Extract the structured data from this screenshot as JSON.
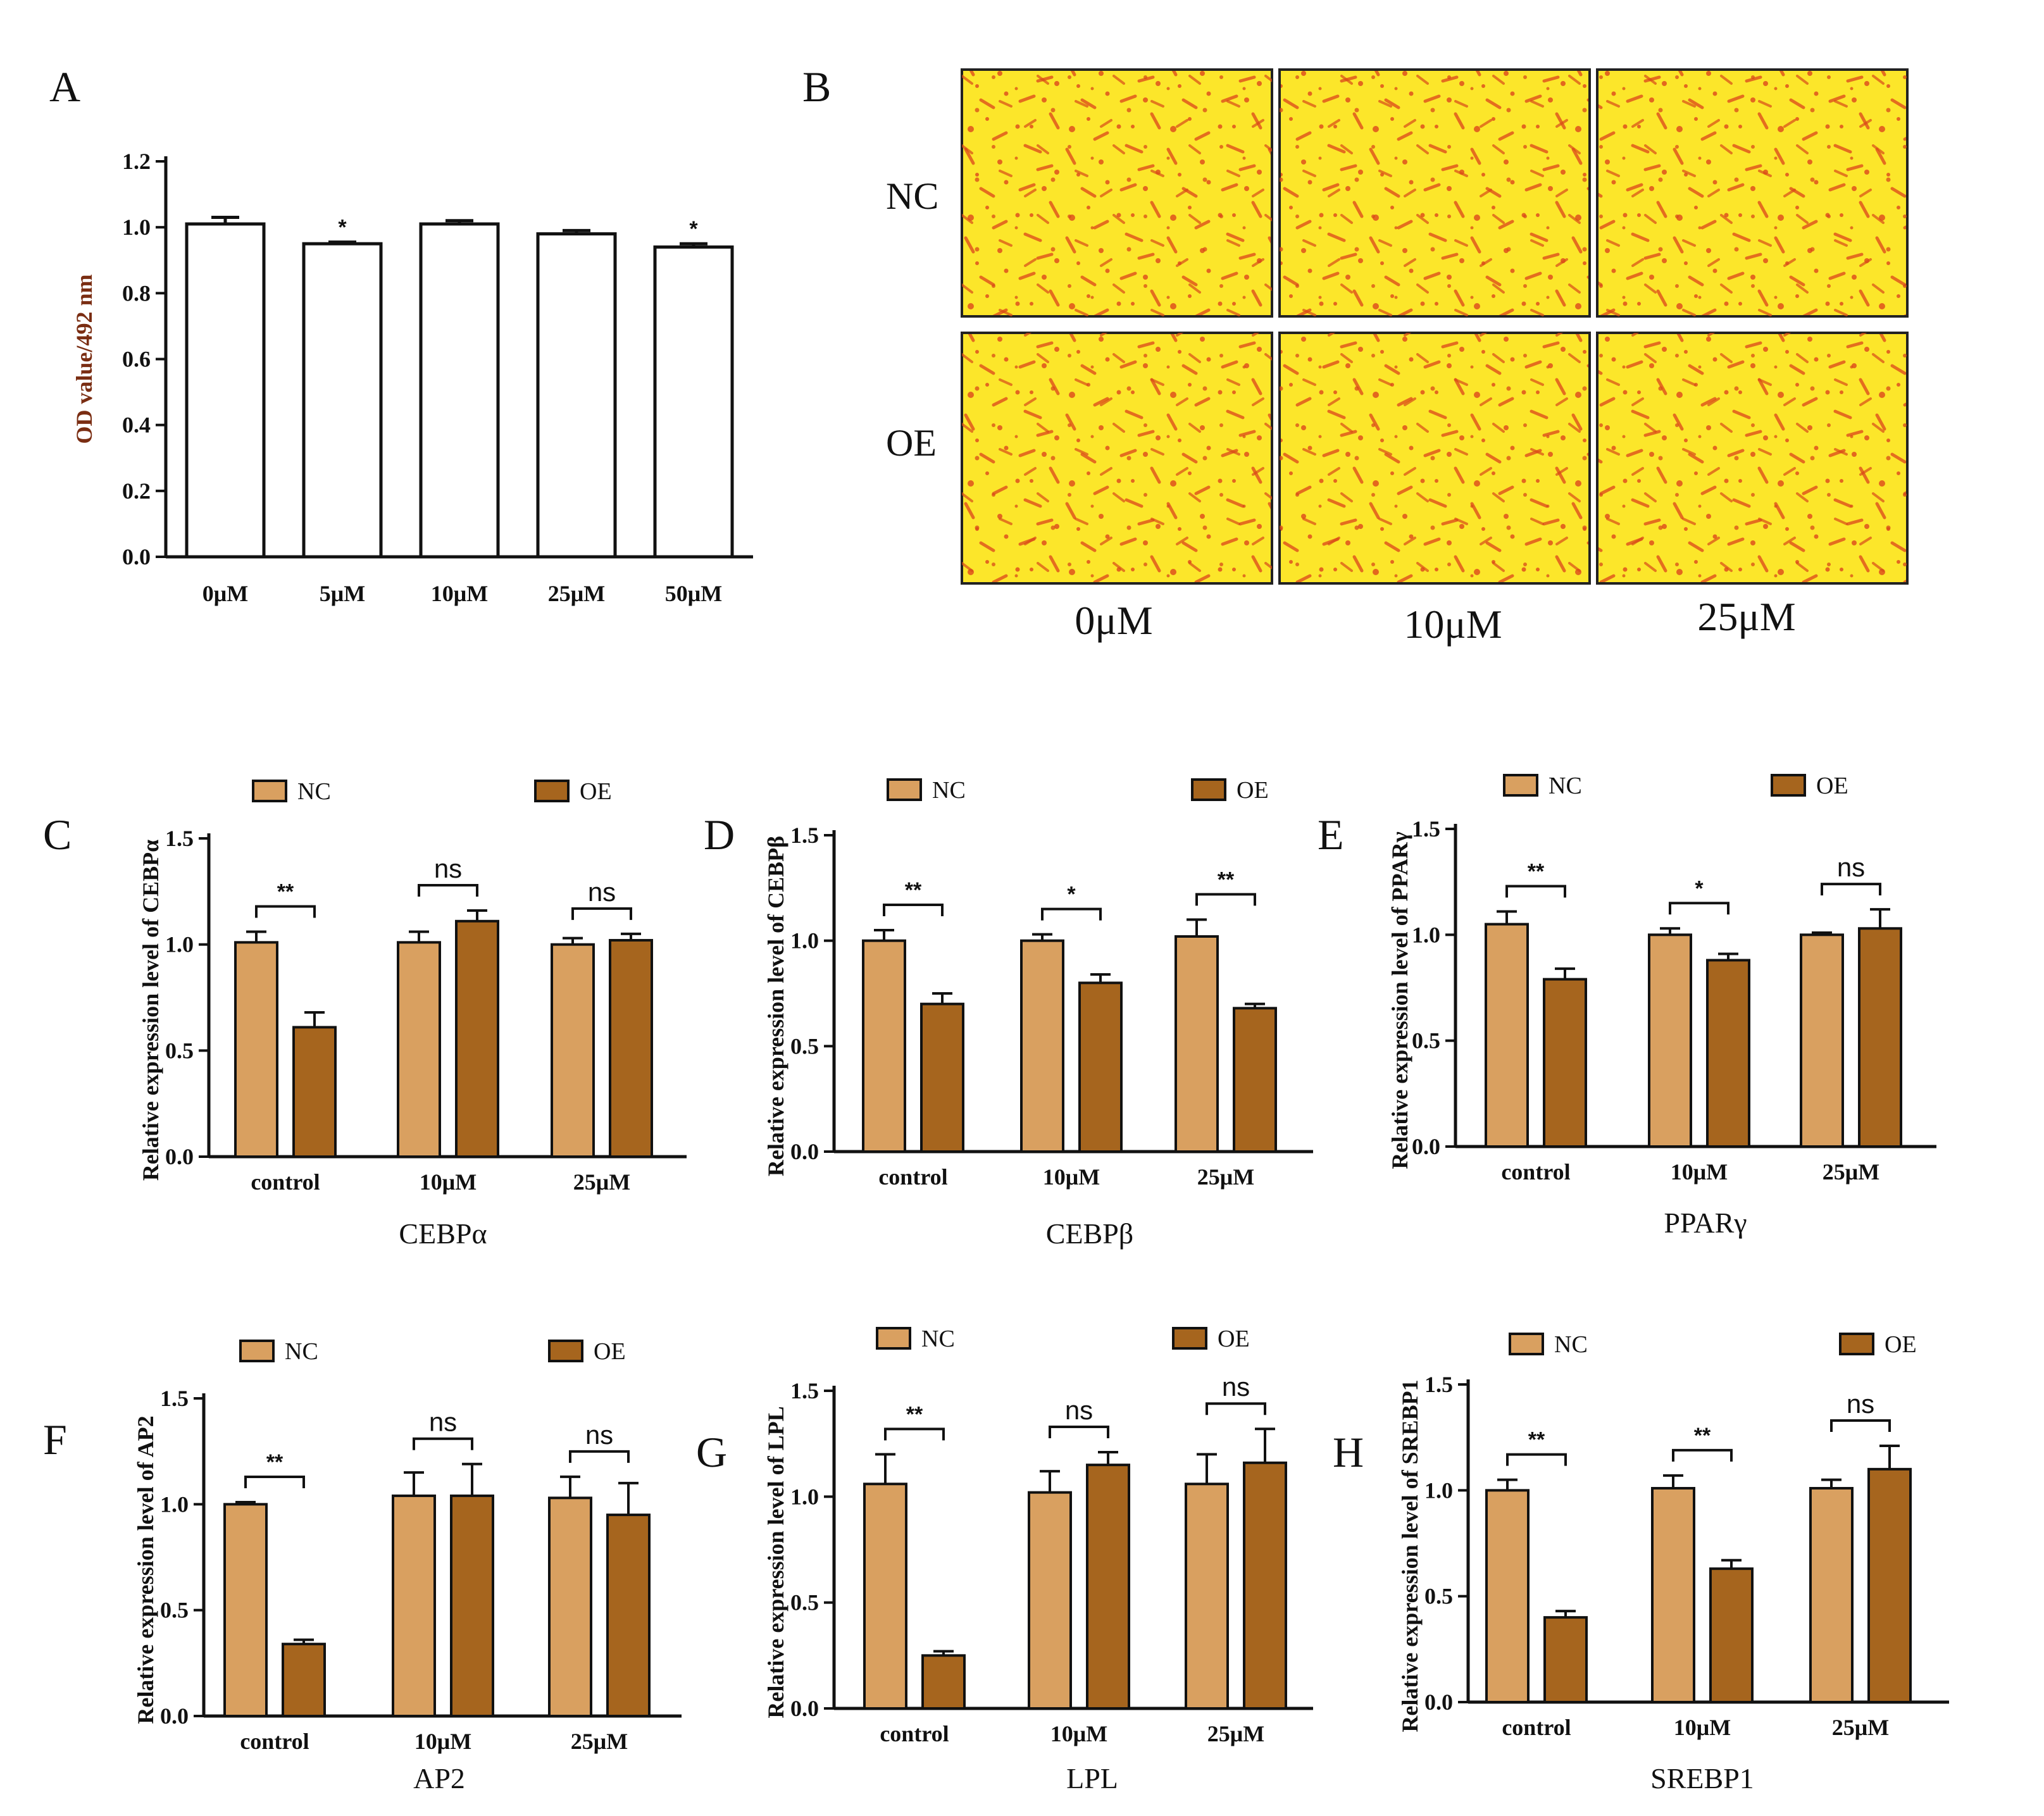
{
  "panel_letters": {
    "A": "A",
    "B": "B",
    "C": "C",
    "D": "D",
    "E": "E",
    "F": "F",
    "G": "G",
    "H": "H"
  },
  "colors": {
    "nc_fill": "#D9A060",
    "oe_fill": "#A6651E",
    "axis": "#111111",
    "stain_bg": "#FCE62A",
    "stain_dot": "#E0581C",
    "panel_a_ylabel": "#7a2d12"
  },
  "panel_b": {
    "row_labels": [
      "NC",
      "OE"
    ],
    "col_labels": [
      "0μM",
      "10μM",
      "25μM"
    ]
  },
  "chart_data": [
    {
      "id": "A",
      "type": "bar",
      "categories": [
        "0μM",
        "5μM",
        "10μM",
        "25μM",
        "50μM"
      ],
      "values": [
        1.01,
        0.95,
        1.01,
        0.98,
        0.94
      ],
      "errors": [
        0.02,
        0.005,
        0.01,
        0.01,
        0.01
      ],
      "significance": [
        "",
        "*",
        "",
        "",
        "*"
      ],
      "ylabel": "OD value/492 nm",
      "ylim": [
        0,
        1.2
      ],
      "yticks": [
        "0.0",
        "0.2",
        "0.4",
        "0.6",
        "0.8",
        "1.0",
        "1.2"
      ]
    },
    {
      "id": "C",
      "type": "bar",
      "title": "CEBPα",
      "ylabel": "Relative expression level of CEBPα",
      "categories": [
        "control",
        "10μM",
        "25μM"
      ],
      "legend": [
        "NC",
        "OE"
      ],
      "series": [
        {
          "name": "NC",
          "values": [
            1.01,
            1.01,
            1.0
          ],
          "errors": [
            0.05,
            0.05,
            0.03
          ]
        },
        {
          "name": "OE",
          "values": [
            0.61,
            1.11,
            1.02
          ],
          "errors": [
            0.07,
            0.05,
            0.03
          ]
        }
      ],
      "significance": [
        "**",
        "ns",
        "ns"
      ],
      "ylim": [
        0,
        1.5
      ],
      "yticks": [
        "0.0",
        "0.5",
        "1.0",
        "1.5"
      ]
    },
    {
      "id": "D",
      "type": "bar",
      "title": "CEBPβ",
      "ylabel": "Relative expression level of CEBPβ",
      "categories": [
        "control",
        "10μM",
        "25μM"
      ],
      "legend": [
        "NC",
        "OE"
      ],
      "series": [
        {
          "name": "NC",
          "values": [
            1.0,
            1.0,
            1.02
          ],
          "errors": [
            0.05,
            0.03,
            0.08
          ]
        },
        {
          "name": "OE",
          "values": [
            0.7,
            0.8,
            0.68
          ],
          "errors": [
            0.05,
            0.04,
            0.02
          ]
        }
      ],
      "significance": [
        "**",
        "*",
        "**"
      ],
      "ylim": [
        0,
        1.5
      ],
      "yticks": [
        "0.0",
        "0.5",
        "1.0",
        "1.5"
      ]
    },
    {
      "id": "E",
      "type": "bar",
      "title": "PPARγ",
      "ylabel": "Relative expression level of PPARγ",
      "categories": [
        "control",
        "10μM",
        "25μM"
      ],
      "legend": [
        "NC",
        "OE"
      ],
      "series": [
        {
          "name": "NC",
          "values": [
            1.05,
            1.0,
            1.0
          ],
          "errors": [
            0.06,
            0.03,
            0.01
          ]
        },
        {
          "name": "OE",
          "values": [
            0.79,
            0.88,
            1.03
          ],
          "errors": [
            0.05,
            0.03,
            0.09
          ]
        }
      ],
      "significance": [
        "**",
        "*",
        "ns"
      ],
      "ylim": [
        0,
        1.5
      ],
      "yticks": [
        "0.0",
        "0.5",
        "1.0",
        "1.5"
      ]
    },
    {
      "id": "F",
      "type": "bar",
      "title": "AP2",
      "ylabel": "Relative expression level of AP2",
      "categories": [
        "control",
        "10μM",
        "25μM"
      ],
      "legend": [
        "NC",
        "OE"
      ],
      "series": [
        {
          "name": "NC",
          "values": [
            1.0,
            1.04,
            1.03
          ],
          "errors": [
            0.01,
            0.11,
            0.1
          ]
        },
        {
          "name": "OE",
          "values": [
            0.34,
            1.04,
            0.95
          ],
          "errors": [
            0.02,
            0.15,
            0.15
          ]
        }
      ],
      "significance": [
        "**",
        "ns",
        "ns"
      ],
      "ylim": [
        0,
        1.5
      ],
      "yticks": [
        "0.0",
        "0.5",
        "1.0",
        "1.5"
      ]
    },
    {
      "id": "G",
      "type": "bar",
      "title": "LPL",
      "ylabel": "Relative expression level of LPL",
      "categories": [
        "control",
        "10μM",
        "25μM"
      ],
      "legend": [
        "NC",
        "OE"
      ],
      "series": [
        {
          "name": "NC",
          "values": [
            1.06,
            1.02,
            1.06
          ],
          "errors": [
            0.14,
            0.1,
            0.14
          ]
        },
        {
          "name": "OE",
          "values": [
            0.25,
            1.15,
            1.16
          ],
          "errors": [
            0.02,
            0.06,
            0.16
          ]
        }
      ],
      "significance": [
        "**",
        "ns",
        "ns"
      ],
      "ylim": [
        0,
        1.5
      ],
      "yticks": [
        "0.0",
        "0.5",
        "1.0",
        "1.5"
      ]
    },
    {
      "id": "H",
      "type": "bar",
      "title": "SREBP1",
      "ylabel": "Relative expression level of SREBP1",
      "categories": [
        "control",
        "10μM",
        "25μM"
      ],
      "legend": [
        "NC",
        "OE"
      ],
      "series": [
        {
          "name": "NC",
          "values": [
            1.0,
            1.01,
            1.01
          ],
          "errors": [
            0.05,
            0.06,
            0.04
          ]
        },
        {
          "name": "OE",
          "values": [
            0.4,
            0.63,
            1.1
          ],
          "errors": [
            0.03,
            0.04,
            0.11
          ]
        }
      ],
      "significance": [
        "**",
        "**",
        "ns"
      ],
      "ylim": [
        0,
        1.5
      ],
      "yticks": [
        "0.0",
        "0.5",
        "1.0",
        "1.5"
      ]
    }
  ]
}
